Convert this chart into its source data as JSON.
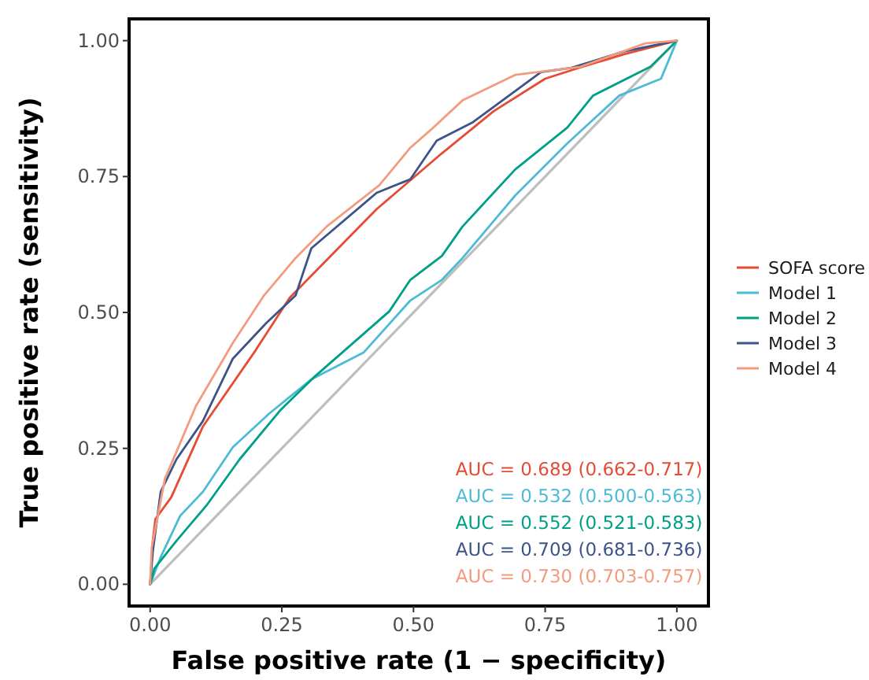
{
  "chart_data": {
    "type": "line",
    "xlabel": "False positive rate (1 − specificity)",
    "ylabel": "True positive rate (sensitivity)",
    "xlim": [
      -0.04,
      1.06
    ],
    "ylim": [
      -0.04,
      1.04
    ],
    "xticks": [
      {
        "value": 0,
        "label": "0.00"
      },
      {
        "value": 0.25,
        "label": "0.25"
      },
      {
        "value": 0.5,
        "label": "0.50"
      },
      {
        "value": 0.75,
        "label": "0.75"
      },
      {
        "value": 1,
        "label": "1.00"
      }
    ],
    "yticks": [
      {
        "value": 0,
        "label": "0.00"
      },
      {
        "value": 0.25,
        "label": "0.25"
      },
      {
        "value": 0.5,
        "label": "0.50"
      },
      {
        "value": 0.75,
        "label": "0.75"
      },
      {
        "value": 1,
        "label": "1.00"
      }
    ],
    "grid": false,
    "legend": "right",
    "line_style": "solid",
    "marker": "none",
    "series": [
      {
        "name": "SOFA score",
        "color": "#e64b35",
        "x": [
          0,
          0.005,
          0.01,
          0.04,
          0.1,
          0.2,
          0.265,
          0.43,
          0.553,
          0.652,
          0.75,
          0.821,
          0.9,
          1
        ],
        "values": [
          0,
          0.08,
          0.12,
          0.16,
          0.29,
          0.43,
          0.527,
          0.69,
          0.792,
          0.87,
          0.93,
          0.952,
          0.975,
          1
        ]
      },
      {
        "name": "Model 1",
        "color": "#4dbbd5",
        "x": [
          0,
          0.02,
          0.057,
          0.1,
          0.157,
          0.226,
          0.306,
          0.405,
          0.494,
          0.554,
          0.593,
          0.693,
          0.792,
          0.891,
          0.97,
          1
        ],
        "values": [
          0,
          0.05,
          0.126,
          0.17,
          0.252,
          0.314,
          0.377,
          0.426,
          0.522,
          0.56,
          0.6,
          0.715,
          0.811,
          0.899,
          0.93,
          1
        ]
      },
      {
        "name": "Model 2",
        "color": "#00a087",
        "x": [
          0,
          0.008,
          0.05,
          0.107,
          0.17,
          0.246,
          0.31,
          0.375,
          0.454,
          0.494,
          0.554,
          0.593,
          0.693,
          0.792,
          0.841,
          0.95,
          1
        ],
        "values": [
          0,
          0.029,
          0.08,
          0.145,
          0.23,
          0.319,
          0.38,
          0.435,
          0.502,
          0.56,
          0.604,
          0.658,
          0.763,
          0.84,
          0.899,
          0.952,
          1
        ]
      },
      {
        "name": "Model 3",
        "color": "#3c5488",
        "x": [
          0,
          0.005,
          0.02,
          0.05,
          0.1,
          0.157,
          0.22,
          0.276,
          0.306,
          0.43,
          0.494,
          0.544,
          0.613,
          0.742,
          0.8,
          0.9,
          1
        ],
        "values": [
          0,
          0.06,
          0.17,
          0.23,
          0.3,
          0.415,
          0.48,
          0.531,
          0.618,
          0.72,
          0.745,
          0.816,
          0.85,
          0.942,
          0.95,
          0.98,
          1
        ]
      },
      {
        "name": "Model 4",
        "color": "#f39b7f",
        "x": [
          0,
          0.003,
          0.028,
          0.087,
          0.157,
          0.216,
          0.276,
          0.335,
          0.435,
          0.494,
          0.533,
          0.593,
          0.693,
          0.817,
          0.94,
          1
        ],
        "values": [
          0,
          0.068,
          0.194,
          0.328,
          0.444,
          0.531,
          0.6,
          0.658,
          0.734,
          0.803,
          0.836,
          0.89,
          0.937,
          0.952,
          0.995,
          1
        ]
      },
      {
        "color": "#bebebe",
        "x": [
          0,
          1
        ],
        "values": [
          0,
          1
        ]
      }
    ],
    "annotations": [
      "AUC = 0.689 (0.662-0.717)",
      "AUC = 0.532 (0.500-0.563)",
      "AUC = 0.552 (0.521-0.583)",
      "AUC = 0.709 (0.681-0.736)",
      "AUC = 0.730 (0.703-0.757)"
    ]
  }
}
